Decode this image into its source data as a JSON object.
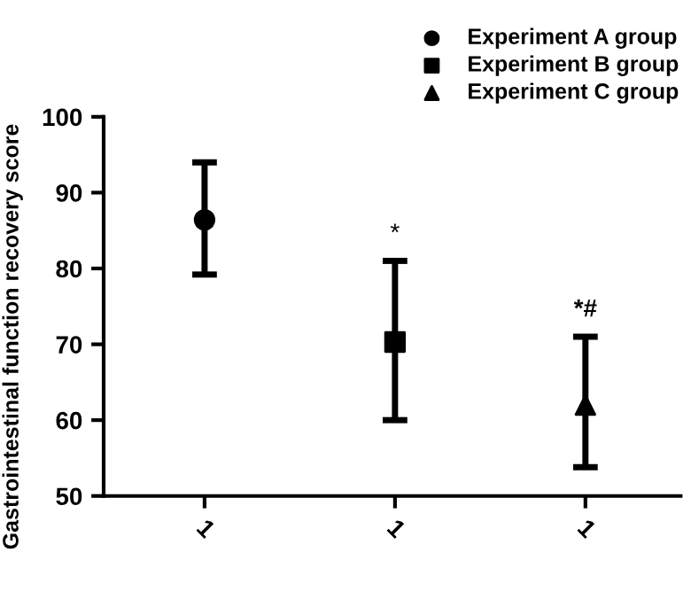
{
  "chart_data": {
    "type": "scatter",
    "ylabel": "Gastrointestinal function recovery score",
    "categories": [
      "1",
      "1",
      "1"
    ],
    "series": [
      {
        "name": "Experiment A group",
        "color": "#000000",
        "marker": "circle",
        "values": [
          86.4,
          null,
          null
        ],
        "errors": [
          [
            79.2,
            94.0
          ],
          null,
          null
        ]
      },
      {
        "name": "Experiment B group",
        "color": "#000000",
        "marker": "square",
        "values": [
          null,
          70.3,
          null
        ],
        "errors": [
          null,
          [
            60.0,
            81.0
          ],
          null
        ]
      },
      {
        "name": "Experiment C group",
        "color": "#000000",
        "marker": "triangle",
        "values": [
          null,
          null,
          62.0
        ],
        "errors": [
          null,
          null,
          [
            53.8,
            71.0
          ]
        ]
      }
    ],
    "annotations": [
      "*",
      "*#"
    ],
    "ylim": [
      50,
      100
    ],
    "yticks": [
      50,
      60,
      70,
      80,
      90,
      100
    ],
    "grid": false,
    "legend": "top right"
  }
}
